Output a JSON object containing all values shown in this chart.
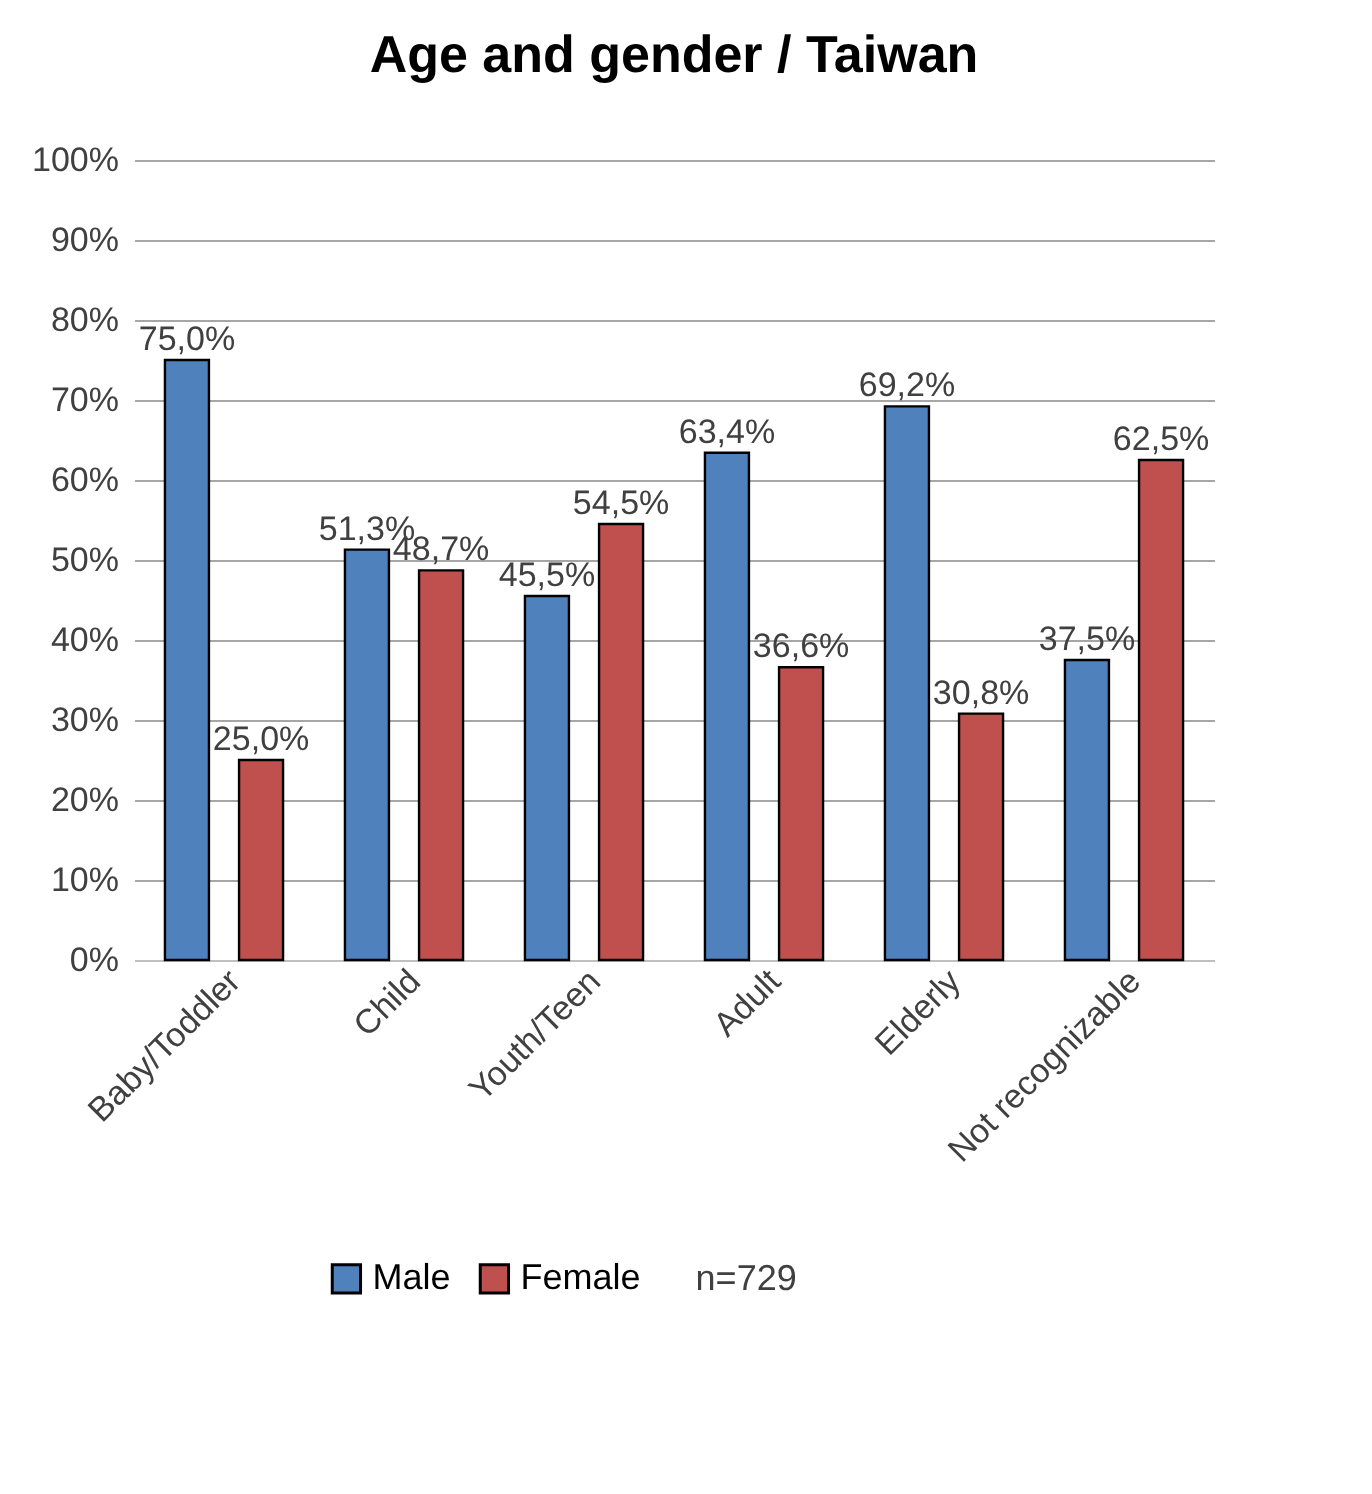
{
  "chart_data": {
    "type": "bar",
    "title": "Age and gender / Taiwan",
    "categories": [
      "Baby/Toddler",
      "Child",
      "Youth/Teen",
      "Adult",
      "Elderly",
      "Not recognizable"
    ],
    "series": [
      {
        "name": "Male",
        "color": "#4f81bd",
        "values": [
          75.0,
          51.3,
          45.5,
          63.4,
          69.2,
          37.5
        ],
        "value_labels": [
          "75,0%",
          "51,3%",
          "45,5%",
          "63,4%",
          "69,2%",
          "37,5%"
        ]
      },
      {
        "name": "Female",
        "color": "#c0504d",
        "values": [
          25.0,
          48.7,
          54.5,
          36.6,
          30.8,
          62.5
        ],
        "value_labels": [
          "25,0%",
          "48,7%",
          "54,5%",
          "36,6%",
          "30,8%",
          "62,5%"
        ]
      }
    ],
    "ylim": [
      0,
      100
    ],
    "yticks": [
      {
        "value": 0,
        "label": "0%"
      },
      {
        "value": 10,
        "label": "10%"
      },
      {
        "value": 20,
        "label": "20%"
      },
      {
        "value": 30,
        "label": "30%"
      },
      {
        "value": 40,
        "label": "40%"
      },
      {
        "value": 50,
        "label": "50%"
      },
      {
        "value": 60,
        "label": "60%"
      },
      {
        "value": 70,
        "label": "70%"
      },
      {
        "value": 80,
        "label": "80%"
      },
      {
        "value": 90,
        "label": "90%"
      },
      {
        "value": 100,
        "label": "100%"
      }
    ],
    "grid": "y",
    "legend": "bottom",
    "annotations": [
      "n=729"
    ]
  }
}
